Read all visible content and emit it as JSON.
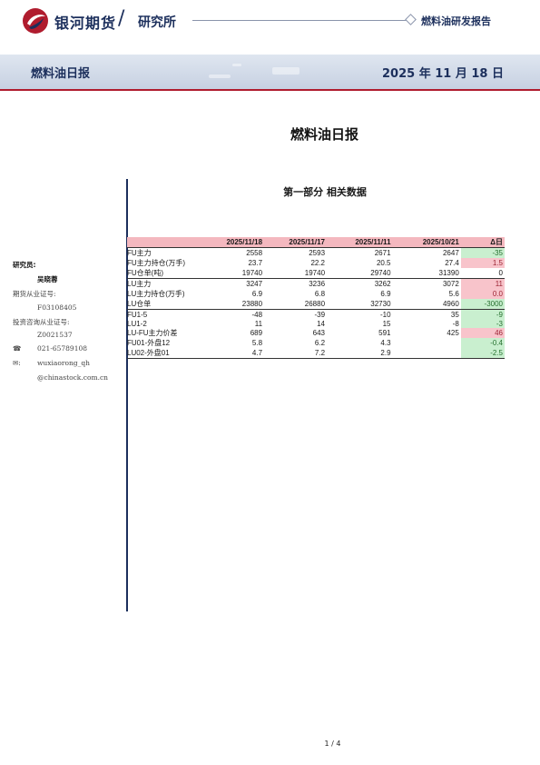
{
  "header": {
    "brand": "银河期货",
    "slash": "/",
    "dept": "研究所",
    "report_type": "燃料油研发报告",
    "brand_color": "#1c2f5c",
    "accent_color": "#b01c2e"
  },
  "title_bar": {
    "left": "燃料油日报",
    "date": "2025 年 11 月 18 日"
  },
  "report_title": "燃料油日报",
  "section_title": "第一部分 相关数据",
  "sidebar": {
    "researcher_label": "研究员:",
    "researcher_name": "吴晓蓉",
    "futures_cert_label": "期货从业证号:",
    "futures_cert": "F03108405",
    "invest_cert_label": "投资咨询从业证号:",
    "invest_cert": "Z0021537",
    "phone_icon": "phone-icon",
    "phone": "021-65789108",
    "email_icon": "email-icon",
    "email_user": "wuxiaorong_qh",
    "email_domain": "@chinastock.com.cn"
  },
  "table": {
    "headers": [
      "",
      "2025/11/18",
      "2025/11/17",
      "2025/11/11",
      "2025/10/21",
      "Δ日"
    ],
    "rows": [
      {
        "label": "FU主力",
        "values": [
          "2558",
          "2593",
          "2671",
          "2647"
        ],
        "delta": "-35",
        "tone": "neg"
      },
      {
        "label": "FU主力持仓(万手)",
        "values": [
          "23.7",
          "22.2",
          "20.5",
          "27.4"
        ],
        "delta": "1.5",
        "tone": "pos"
      },
      {
        "label": "FU仓单(吨)",
        "values": [
          "19740",
          "19740",
          "29740",
          "31390"
        ],
        "delta": "0",
        "tone": "zero"
      },
      {
        "label": "LU主力",
        "values": [
          "3247",
          "3236",
          "3262",
          "3072"
        ],
        "delta": "11",
        "tone": "pos"
      },
      {
        "label": "LU主力持仓(万手)",
        "values": [
          "6.9",
          "6.8",
          "6.9",
          "5.6"
        ],
        "delta": "0.0",
        "tone": "pos"
      },
      {
        "label": "LU仓单",
        "values": [
          "23880",
          "26880",
          "32730",
          "4960"
        ],
        "delta": "-3000",
        "tone": "neg"
      },
      {
        "label": "FU1-5",
        "values": [
          "-48",
          "-39",
          "-10",
          "35"
        ],
        "delta": "-9",
        "tone": "neg"
      },
      {
        "label": "LU1-2",
        "values": [
          "11",
          "14",
          "15",
          "-8"
        ],
        "delta": "-3",
        "tone": "neg"
      },
      {
        "label": "LU-FU主力价差",
        "values": [
          "689",
          "643",
          "591",
          "425"
        ],
        "delta": "46",
        "tone": "pos"
      },
      {
        "label": "FU01-外盘12",
        "values": [
          "5.8",
          "6.2",
          "4.3",
          ""
        ],
        "delta": "-0.4",
        "tone": "neg"
      },
      {
        "label": "LU02-外盘01",
        "values": [
          "4.7",
          "7.2",
          "2.9",
          ""
        ],
        "delta": "-2.5",
        "tone": "neg"
      }
    ]
  },
  "page_number": "1 / 4"
}
